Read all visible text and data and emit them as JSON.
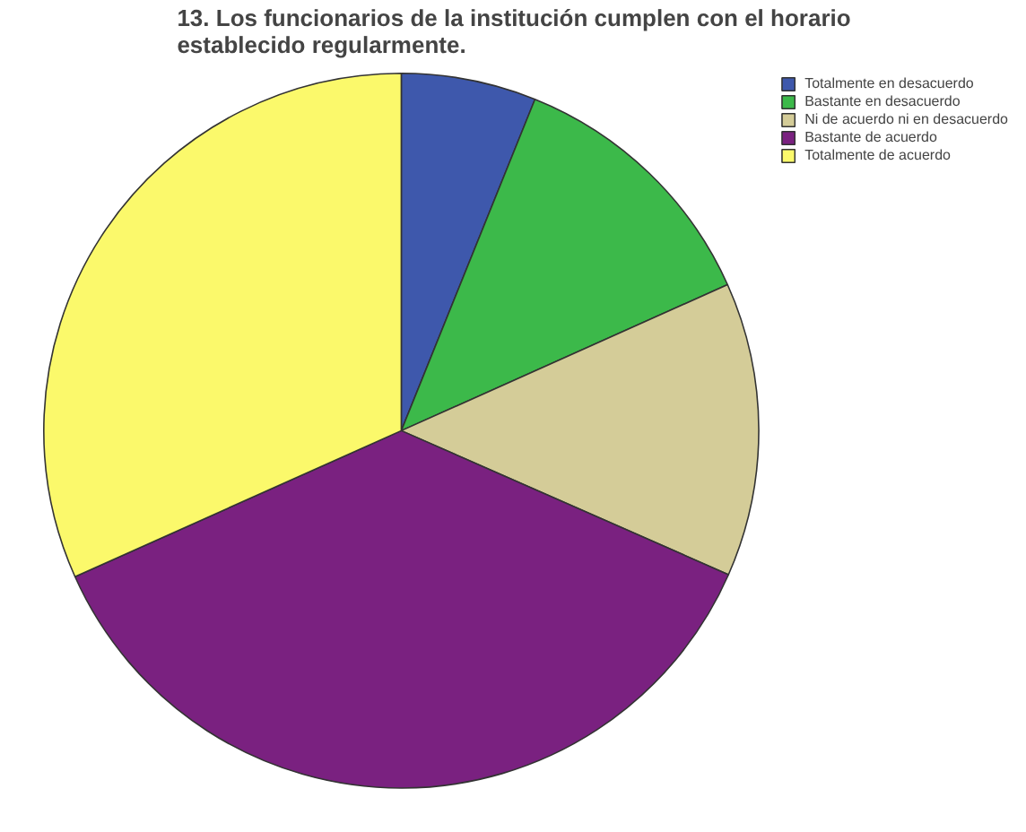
{
  "chart_data": {
    "type": "pie",
    "title": "13. Los funcionarios de la institución cumplen con el horario establecido regularmente.",
    "categories": [
      "Totalmente en desacuerdo",
      "Bastante en desacuerdo",
      "Ni de acuerdo ni en desacuerdo",
      "Bastante de acuerdo",
      "Totalmente de acuerdo"
    ],
    "values": [
      6.1,
      12.2,
      13.3,
      36.7,
      31.7
    ],
    "colors": [
      "#3e58ac",
      "#3cb94a",
      "#d4cc98",
      "#7a2180",
      "#fbf96b"
    ],
    "legend": "top right"
  }
}
